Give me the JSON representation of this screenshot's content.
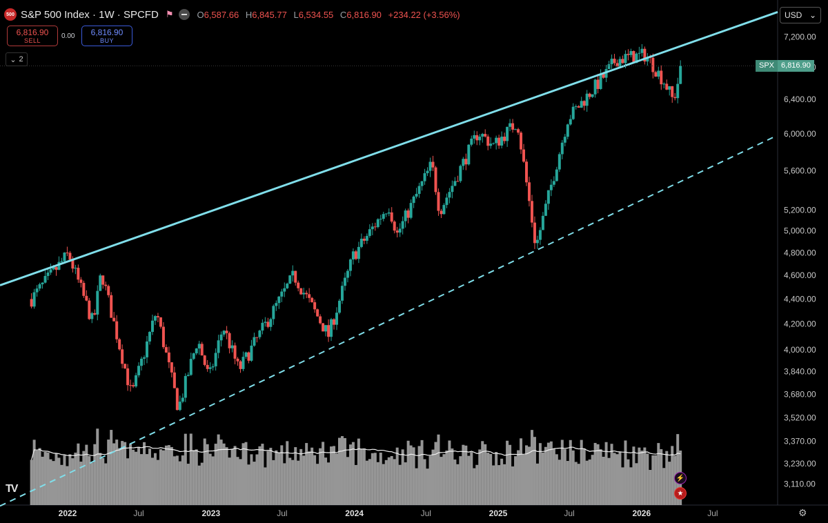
{
  "header": {
    "logo_text": "500",
    "title": "S&P 500 Index · 1W · SPCFD",
    "open_label": "O",
    "open": "6,587.66",
    "high_label": "H",
    "high": "6,845.77",
    "low_label": "L",
    "low": "6,534.55",
    "close_label": "C",
    "close": "6,816.90",
    "change": "+234.22 (+3.56%)"
  },
  "trade": {
    "sell_price": "6,816.90",
    "sell_label": "SELL",
    "spread": "0.00",
    "buy_price": "6,816.90",
    "buy_label": "BUY"
  },
  "collapse_count": "2",
  "currency": "USD",
  "price_tag": {
    "symbol": "SPX",
    "value": "6,816.90"
  },
  "colors": {
    "up": "#26a69a",
    "down": "#ef5350",
    "trendline": "#80deea",
    "volume": "#b0b0b0"
  },
  "icons": {
    "settings": "gear-icon",
    "logo": "tradingview-logo",
    "lightning": "lightning-icon",
    "flag": "us-flag-icon"
  },
  "chart_data": {
    "type": "candlestick",
    "scale": "log",
    "y_ticks": [
      "7,200.00",
      "6,800.00",
      "6,400.00",
      "6,000.00",
      "5,600.00",
      "5,200.00",
      "5,000.00",
      "4,800.00",
      "4,600.00",
      "4,400.00",
      "4,200.00",
      "4,000.00",
      "3,840.00",
      "3,680.00",
      "3,520.00",
      "3,370.00",
      "3,230.00",
      "3,110.00"
    ],
    "x_ticks": [
      "2022",
      "Jul",
      "2023",
      "Jul",
      "2024",
      "Jul",
      "2025",
      "Jul",
      "2026",
      "Jul"
    ],
    "anchors": [
      [
        "2021-10-01",
        4400
      ],
      [
        "2022-01-03",
        4790
      ],
      [
        "2022-03-07",
        4200
      ],
      [
        "2022-03-28",
        4630
      ],
      [
        "2022-06-13",
        3670
      ],
      [
        "2022-08-15",
        4300
      ],
      [
        "2022-10-10",
        3580
      ],
      [
        "2022-11-28",
        4080
      ],
      [
        "2022-12-27",
        3790
      ],
      [
        "2023-02-01",
        4180
      ],
      [
        "2023-03-13",
        3850
      ],
      [
        "2023-07-31",
        4600
      ],
      [
        "2023-10-27",
        4110
      ],
      [
        "2023-12-29",
        4770
      ],
      [
        "2024-03-28",
        5250
      ],
      [
        "2024-04-19",
        4970
      ],
      [
        "2024-07-16",
        5670
      ],
      [
        "2024-08-05",
        5190
      ],
      [
        "2024-11-11",
        6020
      ],
      [
        "2024-12-20",
        5870
      ],
      [
        "2025-02-19",
        6140
      ],
      [
        "2025-04-07",
        4850
      ],
      [
        "2025-06-27",
        6170
      ],
      [
        "2025-09-30",
        6700
      ],
      [
        "2025-10-28",
        6900
      ],
      [
        "2026-01-12",
        6960
      ],
      [
        "2026-03-02",
        6600
      ],
      [
        "2026-03-23",
        6380
      ],
      [
        "2026-04-13",
        6816.9
      ]
    ],
    "trendlines": [
      {
        "style": "solid",
        "points": [
          [
            "2021-10-01",
            4610
          ],
          [
            "2026-10-01",
            7400
          ]
        ]
      },
      {
        "style": "dashed",
        "points": [
          [
            "2022-10-10",
            3500
          ],
          [
            "2025-04-07",
            4820
          ]
        ]
      }
    ],
    "volume_ma": true,
    "last_price": 6816.9
  }
}
